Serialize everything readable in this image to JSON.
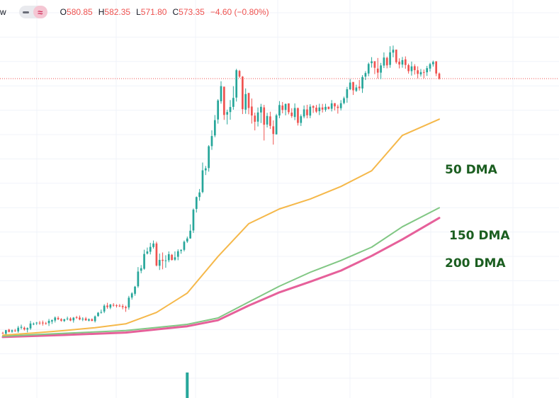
{
  "header": {
    "symbol_fragment": "w",
    "ohlc": {
      "o_label": "O",
      "o_value": "580.85",
      "h_label": "H",
      "h_value": "582.35",
      "l_label": "L",
      "l_value": "571.80",
      "c_label": "C",
      "c_value": "573.35",
      "change": "−4.60 (−0.80%)"
    }
  },
  "colors": {
    "up": "#26a69a",
    "down": "#ef5350",
    "ma50": "#f5b84a",
    "ma150": "#81c784",
    "ma200": "#e6609a",
    "label": "#1b5e20",
    "grid": "#f0f3fa",
    "price_line": "#ef5350"
  },
  "annotations": {
    "ma50": "50 DMA",
    "ma150": "150 DMA",
    "ma200": "200 DMA"
  },
  "chart_data": {
    "type": "candlestick",
    "title": "",
    "grid": true,
    "last_close": 573.35,
    "ylim": [
      175,
      690
    ],
    "candles": [
      [
        196,
        197.6,
        194.4,
        195.5
      ],
      [
        194.8,
        200.4,
        193.3,
        200
      ],
      [
        200.8,
        202,
        196.6,
        197.4
      ],
      [
        197.8,
        201,
        196.1,
        199.8
      ],
      [
        199.6,
        201.8,
        197.4,
        198.5
      ],
      [
        198.2,
        206.3,
        196.1,
        203.7
      ],
      [
        203.6,
        208.2,
        201.1,
        204.9
      ],
      [
        203.6,
        205.5,
        199.4,
        201.1
      ],
      [
        200.9,
        204.1,
        196.7,
        203.1
      ],
      [
        202.6,
        213.7,
        200.4,
        209.9
      ],
      [
        209.4,
        211.4,
        207.4,
        209.6
      ],
      [
        210.2,
        212.2,
        207.7,
        211.2
      ],
      [
        211.1,
        213.6,
        208,
        211
      ],
      [
        211.3,
        214.3,
        206.8,
        210
      ],
      [
        210.3,
        212.3,
        208.2,
        209.8
      ],
      [
        210.4,
        216.7,
        206.2,
        213.9
      ],
      [
        212.8,
        216,
        209.2,
        214.8
      ],
      [
        214.3,
        220.3,
        211.4,
        218.7
      ],
      [
        218.2,
        220.6,
        215,
        216.2
      ],
      [
        216.3,
        217.8,
        212.6,
        214.1
      ],
      [
        213.6,
        217,
        212.2,
        216.1
      ],
      [
        216.4,
        220.1,
        214.6,
        217.3
      ],
      [
        217.3,
        219.2,
        213.3,
        214.2
      ],
      [
        214.6,
        219.5,
        211.2,
        218.5
      ],
      [
        219.1,
        221.2,
        216.7,
        218.9
      ],
      [
        218.7,
        221.7,
        214.7,
        215.9
      ],
      [
        216.8,
        219.2,
        213.4,
        216.9
      ],
      [
        217.4,
        219.6,
        213.9,
        214.6
      ],
      [
        214.2,
        217.5,
        213.1,
        216.1
      ],
      [
        216.2,
        217.5,
        213.2,
        213.8
      ],
      [
        213.4,
        221.8,
        211.4,
        220.4
      ],
      [
        220.9,
        226.9,
        220,
        225.9
      ],
      [
        226.2,
        230.6,
        224.5,
        226.9
      ],
      [
        227.7,
        238.5,
        225.3,
        236.3
      ],
      [
        236.5,
        240.6,
        231.8,
        234.3
      ],
      [
        233.5,
        239,
        231.2,
        238
      ],
      [
        237.5,
        240.1,
        234.9,
        236.6
      ],
      [
        236.9,
        238.5,
        233.6,
        236.6
      ],
      [
        236.3,
        238.7,
        234.4,
        236.1
      ],
      [
        235.8,
        238.6,
        230.9,
        234.1
      ],
      [
        234.5,
        236.4,
        227.2,
        232.7
      ],
      [
        233.7,
        250.9,
        230.4,
        248.2
      ],
      [
        248.4,
        256.4,
        245.3,
        254.6
      ],
      [
        254,
        265.7,
        251.1,
        264.5
      ],
      [
        265.1,
        293.6,
        262.8,
        287
      ],
      [
        288.2,
        296.6,
        284.4,
        292
      ],
      [
        291.1,
        319.4,
        289.7,
        313.1
      ],
      [
        313.6,
        322.6,
        312.3,
        316.8
      ],
      [
        316.4,
        329.6,
        312.4,
        323.6
      ],
      [
        323.4,
        333.1,
        321,
        328.6
      ],
      [
        328.7,
        331.3,
        294.6,
        296
      ],
      [
        295.6,
        313.7,
        289.3,
        304.3
      ],
      [
        304.5,
        315.3,
        290.3,
        302.9
      ],
      [
        302.8,
        311.2,
        292.6,
        303.6
      ],
      [
        303.8,
        316.9,
        300.8,
        312.8
      ],
      [
        311.8,
        313.1,
        303.3,
        304.2
      ],
      [
        304.6,
        316.9,
        302.9,
        308.1
      ],
      [
        308.9,
        320,
        303.8,
        317.1
      ],
      [
        317.6,
        320.1,
        313.4,
        319.1
      ],
      [
        319.2,
        333.1,
        316.9,
        331.2
      ],
      [
        331.6,
        338.9,
        329.4,
        336.1
      ],
      [
        336.1,
        357,
        335.7,
        347.6
      ],
      [
        348,
        380.6,
        344.3,
        378.8
      ],
      [
        380,
        398.4,
        374.6,
        397.5
      ],
      [
        397.6,
        409.5,
        392.1,
        404.4
      ],
      [
        405,
        448.8,
        403.2,
        437.2
      ],
      [
        437.2,
        443.7,
        430.2,
        440.1
      ],
      [
        440.6,
        474.6,
        435.3,
        472.9
      ],
      [
        473.1,
        496.6,
        467.6,
        488.1
      ],
      [
        489,
        519.3,
        486.3,
        511.7
      ],
      [
        512.7,
        542.8,
        506.5,
        540.9
      ],
      [
        539.7,
        569.4,
        536.1,
        562.2
      ],
      [
        561.4,
        561.3,
        512.1,
        519.4
      ],
      [
        519.9,
        527.3,
        505.4,
        523.7
      ],
      [
        523.7,
        541.5,
        512.3,
        531.2
      ],
      [
        531.4,
        562.1,
        527.2,
        544.7
      ],
      [
        545.2,
        587.8,
        539.3,
        585.8
      ],
      [
        584.7,
        586.3,
        574.3,
        576.2
      ],
      [
        576.2,
        577.1,
        520.7,
        528
      ],
      [
        527.3,
        558.8,
        521.1,
        550.4
      ],
      [
        552.1,
        549.8,
        520.4,
        529.7
      ],
      [
        531.9,
        543.8,
        506.6,
        518.6
      ],
      [
        518.4,
        522.9,
        496.5,
        509.3
      ],
      [
        509.5,
        530.5,
        502.3,
        523.1
      ],
      [
        523.1,
        535.9,
        507.4,
        531.5
      ],
      [
        530.6,
        534.4,
        481.5,
        504.9
      ],
      [
        505.2,
        522.6,
        500.8,
        517.9
      ],
      [
        517.3,
        524.2,
        498.6,
        503.2
      ],
      [
        502.5,
        511.3,
        475.4,
        491.2
      ],
      [
        490.6,
        521.1,
        490.5,
        518.8
      ],
      [
        518.6,
        540,
        514.6,
        534.1
      ],
      [
        533.4,
        538.6,
        521.8,
        526.8
      ],
      [
        526.9,
        536.4,
        518.8,
        535.7
      ],
      [
        536.6,
        536.1,
        520.3,
        523.5
      ],
      [
        522.9,
        529.4,
        515.1,
        517.8
      ],
      [
        516.4,
        536.5,
        511.7,
        529.7
      ],
      [
        529.5,
        530.4,
        503.7,
        507.6
      ],
      [
        507.6,
        520.2,
        503,
        517.5
      ],
      [
        517.1,
        533.5,
        514.4,
        527.7
      ],
      [
        527.6,
        534.5,
        514.4,
        518.9
      ],
      [
        518.4,
        535.3,
        514.6,
        531.7
      ],
      [
        532.6,
        533.8,
        522.4,
        530.1
      ],
      [
        530.2,
        534.3,
        522.4,
        524.4
      ],
      [
        525,
        536.1,
        519.2,
        530.5
      ],
      [
        530.5,
        535.8,
        523,
        527.4
      ],
      [
        527.2,
        536,
        524.3,
        531.4
      ],
      [
        531.6,
        531.9,
        527.6,
        528.3
      ],
      [
        528.6,
        541.5,
        524.6,
        536.6
      ],
      [
        536.9,
        537.1,
        526.2,
        532.1
      ],
      [
        531.7,
        534.7,
        521.4,
        529.7
      ],
      [
        529.4,
        541.4,
        526.1,
        536.8
      ],
      [
        537.1,
        546.6,
        535.2,
        544.2
      ],
      [
        544.6,
        561,
        537.5,
        557.6
      ],
      [
        557.5,
        572.6,
        556.3,
        567.5
      ],
      [
        568.4,
        564.2,
        549.1,
        556
      ],
      [
        555.2,
        564.3,
        553.6,
        560.2
      ],
      [
        561.4,
        571.3,
        555.6,
        559.1
      ],
      [
        558.7,
        578.5,
        552.1,
        575.7
      ],
      [
        576.3,
        584.4,
        571.2,
        581.6
      ],
      [
        580.9,
        597.2,
        576.9,
        595.1
      ],
      [
        596.2,
        605.2,
        589.7,
        599
      ],
      [
        599.2,
        598.3,
        580,
        589.4
      ],
      [
        588.2,
        604,
        573.5,
        582.2
      ],
      [
        582.2,
        596.7,
        572.4,
        592.9
      ],
      [
        592.7,
        612.2,
        589,
        604.6
      ],
      [
        604.1,
        605.9,
        588.6,
        593
      ],
      [
        593.7,
        621.4,
        589.4,
        612.3
      ],
      [
        611.9,
        622.4,
        605,
        616.2
      ],
      [
        616.4,
        614.8,
        595.3,
        597.7
      ],
      [
        598.4,
        603.5,
        588.5,
        594.3
      ],
      [
        594.2,
        605.5,
        589.5,
        600.8
      ],
      [
        601.9,
        606.3,
        588,
        593.6
      ],
      [
        593.3,
        595.6,
        580.8,
        584.4
      ],
      [
        584.4,
        598.6,
        577.8,
        591.5
      ],
      [
        591.8,
        594.8,
        579.4,
        585.9
      ],
      [
        585.7,
        591.6,
        573.8,
        580.4
      ],
      [
        579.6,
        587.6,
        576.4,
        583
      ],
      [
        583,
        586.8,
        573.7,
        582.7
      ],
      [
        582.7,
        592.3,
        577.3,
        588.9
      ],
      [
        588.2,
        596.8,
        583.8,
        594.8
      ],
      [
        594.6,
        600.1,
        591.2,
        598.1
      ],
      [
        599.1,
        597.7,
        577,
        580.9
      ],
      [
        580.85,
        582.35,
        571.8,
        573.35
      ]
    ],
    "ma50": [
      [
        0,
        192.5
      ],
      [
        10,
        195.7
      ],
      [
        20,
        199.4
      ],
      [
        30,
        203.7
      ],
      [
        40,
        209.4
      ],
      [
        50,
        226.3
      ],
      [
        60,
        255
      ],
      [
        70,
        309.3
      ],
      [
        80,
        358
      ],
      [
        90,
        380
      ],
      [
        100,
        394.6
      ],
      [
        110,
        413.3
      ],
      [
        120,
        436.6
      ],
      [
        130,
        489
      ],
      [
        142,
        513.1
      ]
    ],
    "ma150": [
      [
        0,
        191
      ],
      [
        20,
        195.4
      ],
      [
        40,
        199.4
      ],
      [
        60,
        208.6
      ],
      [
        70,
        218.1
      ],
      [
        80,
        241.7
      ],
      [
        90,
        265.3
      ],
      [
        100,
        285.9
      ],
      [
        110,
        303.4
      ],
      [
        120,
        323.2
      ],
      [
        130,
        353.5
      ],
      [
        142,
        381.6
      ]
    ],
    "ma200": [
      [
        0,
        189.8
      ],
      [
        20,
        192.9
      ],
      [
        40,
        196.4
      ],
      [
        60,
        205.8
      ],
      [
        70,
        214.7
      ],
      [
        80,
        236.5
      ],
      [
        90,
        256.1
      ],
      [
        100,
        271.9
      ],
      [
        110,
        288.4
      ],
      [
        120,
        310.3
      ],
      [
        130,
        334.7
      ],
      [
        142,
        366.6
      ]
    ],
    "volume_spike": {
      "index": 60,
      "value": 1
    }
  }
}
